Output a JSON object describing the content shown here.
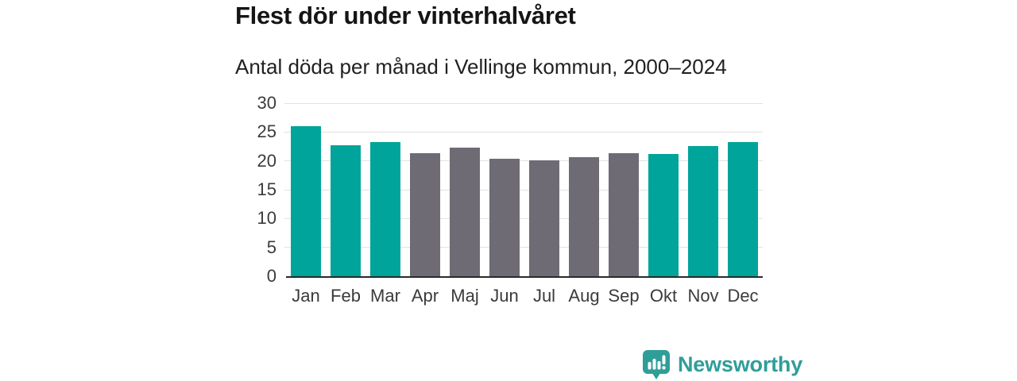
{
  "header": {
    "title": "Flest dör under vinterhalvåret",
    "subtitle": "Antal döda per månad i Vellinge kommun, 2000–2024"
  },
  "footer": {
    "brand": "Newsworthy",
    "logo_icon": "speech-bubble-bar-chart-icon"
  },
  "colors": {
    "winter_bar": "#00a49a",
    "summer_bar": "#6e6b74",
    "grid": "#e2e2e2",
    "axis_line": "#2a2a2a",
    "tick_text": "#3b3b3b",
    "title_text": "#151515",
    "brand_teal": "#2f9e99"
  },
  "chart_data": {
    "type": "bar",
    "title": "Flest dör under vinterhalvåret",
    "subtitle": "Antal döda per månad i Vellinge kommun, 2000–2024",
    "categories": [
      "Jan",
      "Feb",
      "Mar",
      "Apr",
      "Maj",
      "Jun",
      "Jul",
      "Aug",
      "Sep",
      "Okt",
      "Nov",
      "Dec"
    ],
    "values": [
      26.0,
      22.7,
      23.3,
      21.3,
      22.3,
      20.4,
      20.1,
      20.6,
      21.4,
      21.2,
      22.6,
      23.3
    ],
    "highlighted_categories": [
      "Jan",
      "Feb",
      "Mar",
      "Okt",
      "Nov",
      "Dec"
    ],
    "highlight_meaning": "winter half-year months in teal, summer months in gray",
    "xlabel": "",
    "ylabel": "",
    "ylim": [
      0,
      30
    ],
    "yticks": [
      0,
      5,
      10,
      15,
      20,
      25,
      30
    ],
    "grid": "horizontal",
    "legend": "none"
  }
}
